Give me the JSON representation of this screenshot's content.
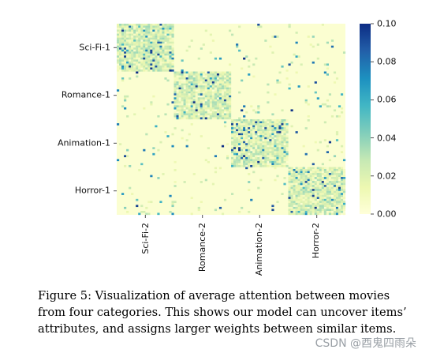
{
  "chart_data": {
    "type": "heatmap",
    "title": "",
    "y_categories": [
      "Sci-Fi-1",
      "Romance-1",
      "Animation-1",
      "Horror-1"
    ],
    "x_categories": [
      "Sci-Fi-2",
      "Romance-2",
      "Animation-2",
      "Horror-2"
    ],
    "colorbar": {
      "min": 0.0,
      "max": 0.1,
      "ticks": [
        "0.00",
        "0.02",
        "0.04",
        "0.06",
        "0.08",
        "0.10"
      ],
      "colormap": "YlGnBu",
      "colors": [
        "#ffffd9",
        "#edf8b1",
        "#c7e9b4",
        "#7fcdbb",
        "#41b6c4",
        "#1d91c0",
        "#225ea8",
        "#0c2c84"
      ]
    },
    "block_structure": "diagonal blocks show higher average attention between items of the same category",
    "diagonal_block_mean": 0.02,
    "off_diagonal_mean": 0.005
  },
  "caption": "Figure 5: Visualization of average attention between movies from four categories. This shows our model can uncover items’ attributes, and assigns larger weights between similar items.",
  "watermark": "CSDN @酉鬼四雨朵"
}
